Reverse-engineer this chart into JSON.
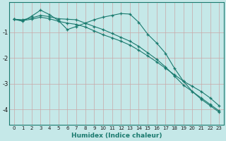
{
  "xlabel": "Humidex (Indice chaleur)",
  "bg_color": "#c5e8e8",
  "line_color": "#1a7a6e",
  "grid_color": "#c8a8a8",
  "xlim": [
    -0.5,
    23.5
  ],
  "ylim": [
    -4.6,
    0.15
  ],
  "yticks": [
    -1,
    -2,
    -3,
    -4
  ],
  "xticks": [
    0,
    1,
    2,
    3,
    4,
    5,
    6,
    7,
    8,
    9,
    10,
    11,
    12,
    13,
    14,
    15,
    16,
    17,
    18,
    19,
    20,
    21,
    22,
    23
  ],
  "line1_x": [
    0,
    1,
    2,
    3,
    4,
    5,
    6,
    7,
    8,
    9,
    10,
    11,
    12,
    13,
    14,
    15,
    16,
    17,
    18,
    19,
    20,
    21,
    22,
    23
  ],
  "line1_y": [
    -0.5,
    -0.52,
    -0.45,
    -0.35,
    -0.4,
    -0.48,
    -0.5,
    -0.52,
    -0.65,
    -0.78,
    -0.9,
    -1.05,
    -1.2,
    -1.35,
    -1.55,
    -1.8,
    -2.05,
    -2.35,
    -2.7,
    -3.05,
    -3.3,
    -3.55,
    -3.8,
    -4.05
  ],
  "line2_x": [
    0,
    1,
    2,
    3,
    4,
    5,
    6,
    7,
    8,
    9,
    10,
    11,
    12,
    13,
    14,
    15,
    16,
    17,
    18,
    19,
    20,
    21,
    22,
    23
  ],
  "line2_y": [
    -0.5,
    -0.55,
    -0.5,
    -0.42,
    -0.48,
    -0.58,
    -0.65,
    -0.7,
    -0.8,
    -0.95,
    -1.1,
    -1.22,
    -1.35,
    -1.5,
    -1.7,
    -1.92,
    -2.15,
    -2.4,
    -2.65,
    -2.9,
    -3.1,
    -3.3,
    -3.55,
    -3.85
  ],
  "line3_x": [
    0,
    1,
    2,
    3,
    4,
    5,
    6,
    7,
    8,
    9,
    10,
    11,
    12,
    13,
    14,
    15,
    16,
    17,
    18,
    19,
    20,
    21,
    22,
    23
  ],
  "line3_y": [
    -0.5,
    -0.58,
    -0.38,
    -0.15,
    -0.32,
    -0.55,
    -0.9,
    -0.78,
    -0.65,
    -0.52,
    -0.42,
    -0.35,
    -0.28,
    -0.3,
    -0.62,
    -1.08,
    -1.42,
    -1.82,
    -2.4,
    -2.9,
    -3.3,
    -3.6,
    -3.85,
    -4.1
  ]
}
